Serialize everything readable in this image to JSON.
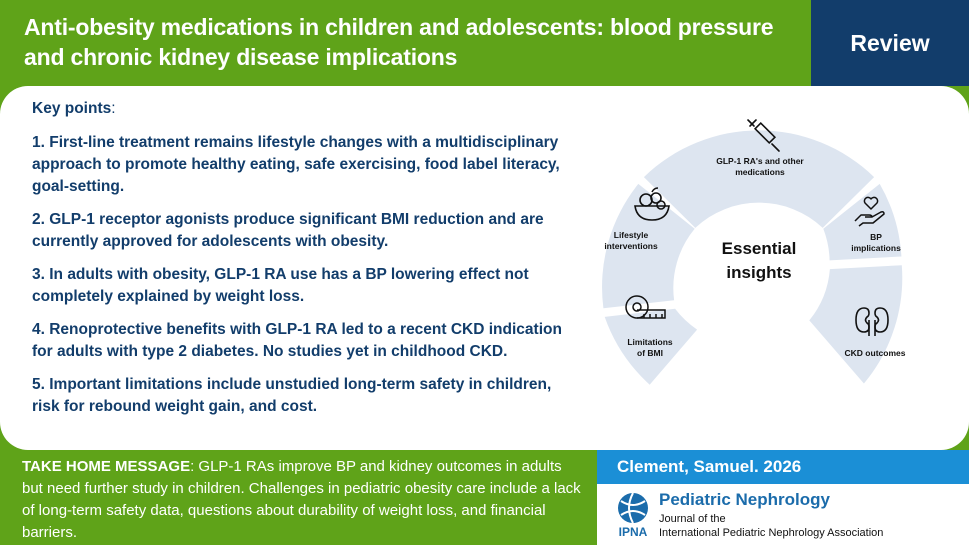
{
  "header": {
    "title": "Anti-obesity medications in children and adolescents: blood pressure and chronic kidney disease implications",
    "badge": "Review"
  },
  "key_points": {
    "heading": "Key points",
    "items": [
      "1. First-line treatment remains lifestyle changes with a multidisciplinary approach to promote healthy eating, safe exercising, food label literacy, goal-setting.",
      "2. GLP-1 receptor agonists produce significant BMI reduction and are currently approved for adolescents with obesity.",
      "3. In adults with obesity, GLP-1 RA use has a BP lowering effect not completely explained by weight loss.",
      "4. Renoprotective benefits with GLP-1 RA led to a recent CKD indication for adults with type 2 diabetes.  No studies yet in childhood CKD.",
      "5. Important limitations include unstudied long-term safety in children, risk for rebound weight gain, and cost."
    ]
  },
  "diagram": {
    "center": "Essential insights",
    "segments": {
      "glp1": "GLP-1 RA's and other medications",
      "lifestyle": "Lifestyle interventions",
      "bp": "BP implications",
      "bmi": "Limitations of BMI",
      "ckd": "CKD outcomes"
    },
    "colors": {
      "segment": "#dde5f0",
      "text": "#111111"
    }
  },
  "take_home": {
    "label": "TAKE HOME MESSAGE",
    "text": ": GLP-1 RAs improve BP and kidney outcomes in adults but need further study in children.  Challenges in pediatric obesity care include a lack of long-term safety data, questions about durability of weight loss, and financial barriers."
  },
  "citation": "Clement, Samuel. 2026",
  "journal": {
    "name": "Pediatric Nephrology",
    "subtitle_line1": "Journal of the",
    "subtitle_line2": "International Pediatric Nephrology Association",
    "logo_text": "IPNA"
  },
  "colors": {
    "green": "#5fa319",
    "navy": "#123d6b",
    "blue": "#1b8fd6",
    "journal_blue": "#1b6cab"
  }
}
